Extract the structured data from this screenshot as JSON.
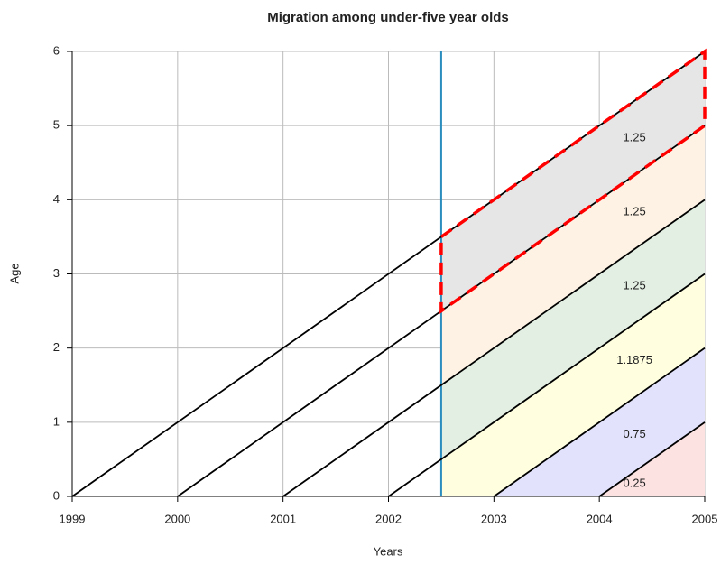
{
  "chart_data": {
    "type": "line",
    "title": "Migration among under-five year olds",
    "xlabel": "Years",
    "ylabel": "Age",
    "xlim": [
      1999,
      2005
    ],
    "ylim": [
      0,
      6
    ],
    "xticks": [
      1999,
      2000,
      2001,
      2002,
      2003,
      2004,
      2005
    ],
    "yticks": [
      0,
      1,
      2,
      3,
      4,
      5,
      6
    ],
    "grid": true,
    "series": [
      {
        "color": "#000000",
        "x": [
          1999,
          2005
        ],
        "values": [
          0,
          6
        ]
      },
      {
        "color": "#000000",
        "x": [
          2000,
          2005
        ],
        "values": [
          0,
          5
        ]
      },
      {
        "color": "#000000",
        "x": [
          2001,
          2005
        ],
        "values": [
          0,
          4
        ]
      },
      {
        "color": "#000000",
        "x": [
          2002,
          2005
        ],
        "values": [
          0,
          3
        ]
      },
      {
        "color": "#000000",
        "x": [
          2003,
          2005
        ],
        "values": [
          0,
          2
        ]
      },
      {
        "color": "#000000",
        "x": [
          2004,
          2005
        ],
        "values": [
          0,
          1
        ]
      }
    ],
    "vline": 2002.5,
    "vline_color": "#2b8cbe",
    "regions": [
      {
        "color": "#e6e6e6",
        "value": 1.25
      },
      {
        "color": "#fdf2e3",
        "value": 1.25
      },
      {
        "color": "#e2efe2",
        "value": 1.25
      },
      {
        "color": "#ffffe0",
        "value": 1.1875
      },
      {
        "color": "#e2e2fc",
        "value": 0.75
      },
      {
        "color": "#fde2e2",
        "value": 0.25
      }
    ],
    "highlight_color": "#ff0000"
  }
}
